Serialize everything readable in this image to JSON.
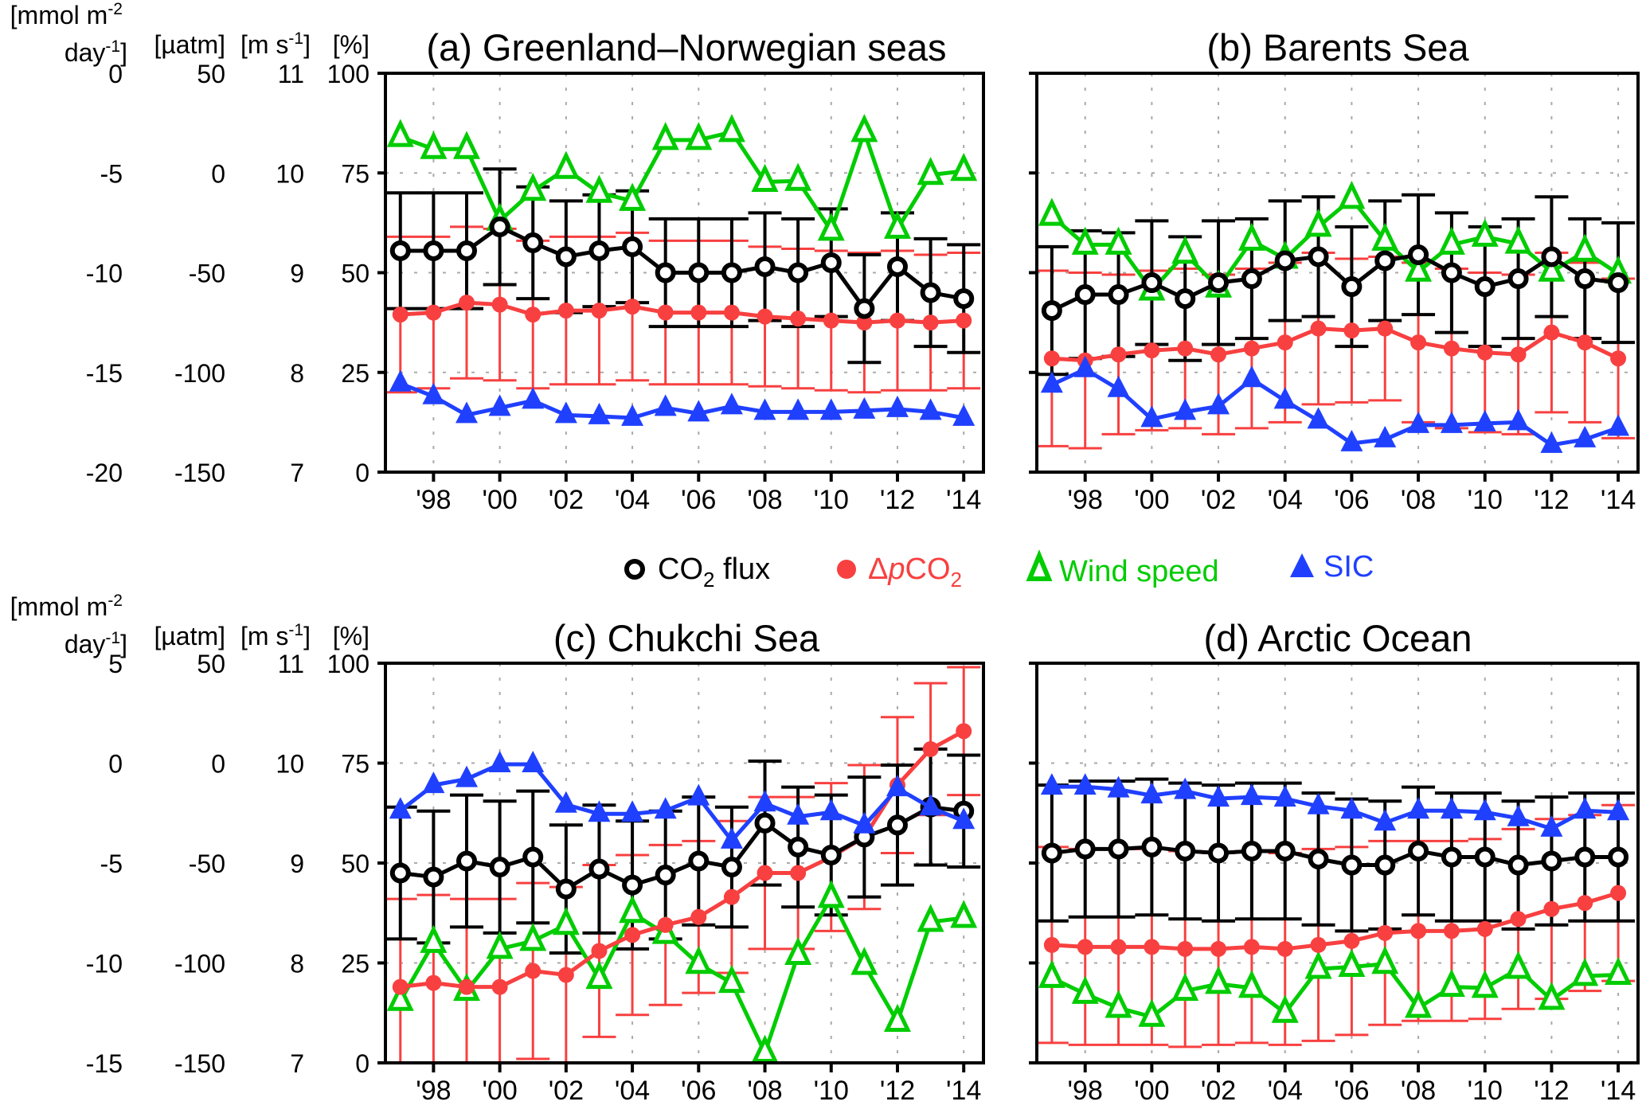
{
  "colors": {
    "co2_flux": "#000000",
    "dpco2": "#f84040",
    "wind": "#00cc00",
    "sic": "#2040ff",
    "grid": "#aaaaaa"
  },
  "legend": {
    "co2_flux": {
      "a": "CO",
      "sub": "2",
      "b": " flux"
    },
    "dpco2": {
      "delta": "Δ",
      "p": "p",
      "a": "CO",
      "sub": "2"
    },
    "wind": {
      "label": "Wind speed"
    },
    "sic": {
      "label": "SIC"
    }
  },
  "axis_units": {
    "flux_line1": "[mmol m",
    "flux_sup1": "-2",
    "flux_line2": "day",
    "flux_sup2": "-1",
    "flux_close": "]",
    "dpco2": "[µatm]",
    "wind_open": "[m s",
    "wind_sup": "-1",
    "wind_close": "]",
    "sic": "[%]"
  },
  "chart_data": [
    {
      "type": "line",
      "title": "(a) Greenland–Norwegian seas",
      "x": [
        1997,
        1998,
        1999,
        2000,
        2001,
        2002,
        2003,
        2004,
        2005,
        2006,
        2007,
        2008,
        2009,
        2010,
        2011,
        2012,
        2013,
        2014
      ],
      "x_tick_labels": [
        "'98",
        "'00",
        "'02",
        "'04",
        "'06",
        "'08",
        "'10",
        "'12",
        "'14"
      ],
      "grid": true,
      "axes": {
        "co2_flux": {
          "ylim": [
            -20,
            0
          ],
          "ticks": [
            0,
            -5,
            -10,
            -15,
            -20
          ]
        },
        "dpco2": {
          "ylim": [
            -150,
            50
          ],
          "ticks": [
            50,
            0,
            -50,
            -100,
            -150
          ]
        },
        "wind": {
          "ylim": [
            7,
            11
          ],
          "ticks": [
            11,
            10,
            9,
            8,
            7
          ]
        },
        "sic": {
          "ylim": [
            0,
            100
          ],
          "ticks": [
            100,
            75,
            50,
            25,
            0
          ]
        }
      },
      "series": [
        {
          "name": "CO2 flux",
          "key": "co2_flux",
          "values": [
            -8.9,
            -8.9,
            -8.9,
            -7.7,
            -8.5,
            -9.2,
            -8.9,
            -8.7,
            -10.0,
            -10.0,
            -10.0,
            -9.7,
            -10.0,
            -9.5,
            -11.8,
            -9.7,
            -11.0,
            -11.3
          ],
          "error": [
            2.9,
            2.9,
            2.9,
            2.9,
            2.8,
            2.8,
            2.8,
            2.8,
            2.7,
            2.7,
            2.7,
            2.7,
            2.7,
            2.7,
            2.7,
            2.7,
            2.7,
            2.7
          ]
        },
        {
          "name": "ΔpCO2",
          "key": "dpco2",
          "values": [
            -71,
            -70,
            -65,
            -66,
            -71,
            -69,
            -69,
            -67,
            -70,
            -70,
            -70,
            -72,
            -73,
            -74,
            -75,
            -74,
            -75,
            -74
          ],
          "error": [
            39,
            38,
            38,
            38,
            37,
            37,
            37,
            37,
            36,
            36,
            36,
            35,
            35,
            35,
            35,
            35,
            34,
            34
          ]
        },
        {
          "name": "Wind speed",
          "key": "wind",
          "values": [
            10.36,
            10.24,
            10.24,
            9.52,
            9.82,
            10.04,
            9.8,
            9.72,
            10.33,
            10.33,
            10.41,
            9.91,
            9.92,
            9.42,
            10.41,
            9.44,
            9.98,
            10.02
          ]
        },
        {
          "name": "SIC",
          "key": "sic",
          "values": [
            22.2,
            19.0,
            14.3,
            16.1,
            17.9,
            14.3,
            14.0,
            13.6,
            16.1,
            14.7,
            16.5,
            15.1,
            15.1,
            15.1,
            15.4,
            15.8,
            15.1,
            13.6
          ]
        }
      ]
    },
    {
      "type": "line",
      "title": "(b) Barents Sea",
      "x": [
        1997,
        1998,
        1999,
        2000,
        2001,
        2002,
        2003,
        2004,
        2005,
        2006,
        2007,
        2008,
        2009,
        2010,
        2011,
        2012,
        2013,
        2014
      ],
      "x_tick_labels": [
        "'98",
        "'00",
        "'02",
        "'04",
        "'06",
        "'08",
        "'10",
        "'12",
        "'14"
      ],
      "grid": true,
      "axes": {
        "co2_flux": {
          "ylim": [
            -20,
            0
          ]
        },
        "dpco2": {
          "ylim": [
            -150,
            50
          ]
        },
        "wind": {
          "ylim": [
            7,
            11
          ]
        },
        "sic": {
          "ylim": [
            0,
            100
          ]
        }
      },
      "series": [
        {
          "name": "CO2 flux",
          "key": "co2_flux",
          "values": [
            -11.9,
            -11.1,
            -11.1,
            -10.5,
            -11.3,
            -10.5,
            -10.3,
            -9.4,
            -9.2,
            -10.7,
            -9.4,
            -9.1,
            -10.0,
            -10.7,
            -10.3,
            -9.2,
            -10.3,
            -10.5
          ],
          "error": [
            3.2,
            3.2,
            3.1,
            3.1,
            3.1,
            3.1,
            3.0,
            3.0,
            3.0,
            3.0,
            3.0,
            3.0,
            3.0,
            3.0,
            3.0,
            3.0,
            3.0,
            3.0
          ]
        },
        {
          "name": "ΔpCO2",
          "key": "dpco2",
          "values": [
            -93,
            -94,
            -91,
            -89,
            -88,
            -91,
            -88,
            -85,
            -78,
            -79,
            -78,
            -85,
            -88,
            -90,
            -91,
            -80,
            -85,
            -93
          ],
          "error": [
            44,
            44,
            40,
            40,
            40,
            40,
            40,
            40,
            38,
            36,
            36,
            40,
            40,
            40,
            40,
            40,
            40,
            40
          ]
        },
        {
          "name": "Wind speed",
          "key": "wind",
          "values": [
            9.57,
            9.28,
            9.28,
            8.82,
            9.19,
            8.85,
            9.32,
            9.14,
            9.46,
            9.74,
            9.32,
            9.01,
            9.28,
            9.36,
            9.29,
            9.01,
            9.21,
            8.99
          ]
        },
        {
          "name": "SIC",
          "key": "sic",
          "values": [
            21.9,
            25.8,
            20.8,
            13.3,
            15.1,
            16.5,
            23.3,
            17.9,
            12.9,
            7.2,
            8.2,
            11.8,
            11.8,
            12.2,
            12.5,
            6.8,
            8.2,
            11.1
          ]
        }
      ]
    },
    {
      "type": "line",
      "title": "(c) Chukchi Sea",
      "x": [
        1997,
        1998,
        1999,
        2000,
        2001,
        2002,
        2003,
        2004,
        2005,
        2006,
        2007,
        2008,
        2009,
        2010,
        2011,
        2012,
        2013,
        2014
      ],
      "x_tick_labels": [
        "'98",
        "'00",
        "'02",
        "'04",
        "'06",
        "'08",
        "'10",
        "'12",
        "'14"
      ],
      "grid": true,
      "axes": {
        "co2_flux": {
          "ylim": [
            -15,
            5
          ],
          "ticks": [
            5,
            0,
            -5,
            -10,
            -15
          ]
        },
        "dpco2": {
          "ylim": [
            -150,
            50
          ],
          "ticks": [
            50,
            0,
            -50,
            -100,
            -150
          ]
        },
        "wind": {
          "ylim": [
            7,
            11
          ],
          "ticks": [
            11,
            10,
            9,
            8,
            7
          ]
        },
        "sic": {
          "ylim": [
            0,
            100
          ],
          "ticks": [
            100,
            75,
            50,
            25,
            0
          ]
        }
      },
      "series": [
        {
          "name": "CO2 flux",
          "key": "co2_flux",
          "values": [
            -5.5,
            -5.7,
            -4.9,
            -5.2,
            -4.7,
            -6.3,
            -5.3,
            -6.1,
            -5.6,
            -4.9,
            -5.2,
            -3.0,
            -4.2,
            -4.6,
            -3.7,
            -3.1,
            -2.2,
            -2.4
          ],
          "error": [
            3.3,
            3.3,
            3.3,
            3.3,
            3.3,
            3.2,
            3.2,
            3.2,
            3.2,
            3.2,
            3.0,
            3.1,
            3.0,
            3.0,
            3.0,
            3.0,
            2.9,
            2.8
          ]
        },
        {
          "name": "ΔpCO2",
          "key": "dpco2",
          "values": [
            -112,
            -110,
            -112,
            -112,
            -104,
            -106,
            -94,
            -86,
            -81,
            -77,
            -67,
            -55,
            -55,
            -47,
            -37,
            -11,
            7,
            16
          ],
          "error": [
            44,
            44,
            44,
            44,
            44,
            44,
            43,
            40,
            40,
            38,
            38,
            38,
            38,
            37,
            36,
            34,
            33,
            32
          ]
        },
        {
          "name": "Wind speed",
          "key": "wind",
          "values": [
            7.62,
            8.2,
            7.72,
            8.14,
            8.22,
            8.38,
            7.84,
            8.5,
            8.29,
            7.99,
            7.8,
            7.1,
            8.08,
            8.65,
            7.98,
            7.41,
            8.41,
            8.45
          ]
        },
        {
          "name": "SIC",
          "key": "sic",
          "values": [
            63.1,
            69.5,
            71.0,
            74.7,
            74.7,
            64.6,
            62.3,
            62.3,
            63.1,
            66.4,
            55.6,
            64.9,
            61.6,
            62.7,
            59.4,
            68.7,
            63.9,
            60.5
          ]
        }
      ]
    },
    {
      "type": "line",
      "title": "(d) Arctic Ocean",
      "x": [
        1997,
        1998,
        1999,
        2000,
        2001,
        2002,
        2003,
        2004,
        2005,
        2006,
        2007,
        2008,
        2009,
        2010,
        2011,
        2012,
        2013,
        2014
      ],
      "x_tick_labels": [
        "'98",
        "'00",
        "'02",
        "'04",
        "'06",
        "'08",
        "'10",
        "'12",
        "'14"
      ],
      "grid": true,
      "axes": {
        "co2_flux": {
          "ylim": [
            -15,
            5
          ]
        },
        "dpco2": {
          "ylim": [
            -150,
            50
          ]
        },
        "wind": {
          "ylim": [
            7,
            11
          ]
        },
        "sic": {
          "ylim": [
            0,
            100
          ]
        }
      },
      "series": [
        {
          "name": "CO2 flux",
          "key": "co2_flux",
          "values": [
            -4.5,
            -4.3,
            -4.3,
            -4.2,
            -4.4,
            -4.5,
            -4.4,
            -4.4,
            -4.8,
            -5.1,
            -5.1,
            -4.4,
            -4.7,
            -4.7,
            -5.1,
            -4.9,
            -4.7,
            -4.7
          ],
          "error": [
            3.4,
            3.4,
            3.4,
            3.4,
            3.4,
            3.4,
            3.4,
            3.4,
            3.3,
            3.3,
            3.2,
            3.2,
            3.2,
            3.2,
            3.2,
            3.2,
            3.2,
            3.2
          ]
        },
        {
          "name": "ΔpCO2",
          "key": "dpco2",
          "values": [
            -91,
            -92,
            -92,
            -92,
            -93,
            -93,
            -92,
            -93,
            -91,
            -89,
            -85,
            -84,
            -84,
            -83,
            -78,
            -73,
            -70,
            -65
          ],
          "error": [
            49,
            49,
            49,
            49,
            49,
            48,
            48,
            48,
            48,
            47,
            46,
            45,
            45,
            45,
            45,
            45,
            44,
            44
          ]
        },
        {
          "name": "Wind speed",
          "key": "wind",
          "values": [
            7.85,
            7.69,
            7.55,
            7.46,
            7.72,
            7.79,
            7.75,
            7.5,
            7.94,
            7.96,
            7.99,
            7.55,
            7.76,
            7.75,
            7.94,
            7.63,
            7.87,
            7.88
          ]
        },
        {
          "name": "SIC",
          "key": "sic",
          "values": [
            69.1,
            69.1,
            68.4,
            66.9,
            68.0,
            66.1,
            66.5,
            66.1,
            64.2,
            63.1,
            60.1,
            63.1,
            63.1,
            62.7,
            61.2,
            58.6,
            63.1,
            62.7
          ]
        }
      ]
    }
  ]
}
